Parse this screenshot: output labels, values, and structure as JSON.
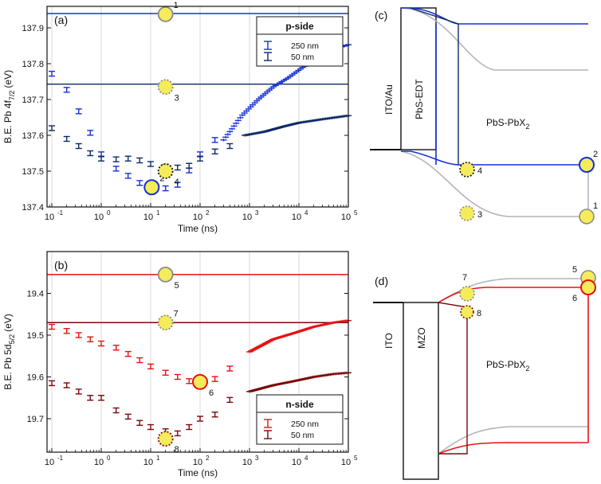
{
  "colors": {
    "blue_250": "#1530d8",
    "blue_50": "#0d2a66",
    "red_250": "#e81010",
    "red_50": "#7a0808",
    "marker_fill": "#f4ec5a",
    "marker_gray": "#8a8a8a",
    "band_gray": "#b4b4bc",
    "grid": "#d8d8d8"
  },
  "chart_data": [
    {
      "panel": "(a)",
      "type": "scatter",
      "x_scale": "log",
      "xlim": [
        0.08,
        100000
      ],
      "ylim": [
        137.96,
        137.4
      ],
      "y_inverted": true,
      "xlabel": "Time (ns)",
      "ylabel_main": "B.E. Pb 4f",
      "ylabel_sub": "7/2",
      "ylabel_unit": "(eV)",
      "x_ticks": [
        0.1,
        1,
        10,
        100,
        1000,
        10000,
        100000
      ],
      "x_tick_labels": [
        "10",
        "10",
        "10",
        "10",
        "10",
        "10",
        "10"
      ],
      "x_tick_exps": [
        "-1",
        "0",
        "1",
        "2",
        "3",
        "4",
        "5"
      ],
      "y_ticks": [
        137.4,
        137.5,
        137.6,
        137.7,
        137.8,
        137.9
      ],
      "y_tick_labels": [
        "137.4",
        "137.5",
        "137.6",
        "137.7",
        "137.8",
        "137.9"
      ],
      "legend": {
        "title": "p-side",
        "entries": [
          "250 nm",
          "50 nm"
        ]
      },
      "series": [
        {
          "name": "250 nm",
          "color_key": "blue_250",
          "x": [
            0.1,
            0.2,
            0.35,
            0.6,
            1,
            2,
            3.5,
            6,
            10,
            20,
            35,
            60,
            100,
            200
          ],
          "y": [
            137.772,
            137.727,
            137.667,
            137.607,
            137.547,
            137.507,
            137.487,
            137.467,
            137.457,
            137.452,
            137.462,
            137.502,
            137.547,
            137.587
          ],
          "err": 0.005,
          "tail_x": [
            300,
            700,
            1500,
            3000,
            6000,
            12000,
            25000,
            50000,
            100000
          ],
          "tail_y": [
            137.587,
            137.655,
            137.7,
            137.735,
            137.76,
            137.79,
            137.815,
            137.84,
            137.853
          ]
        },
        {
          "name": "50 nm",
          "color_key": "blue_50",
          "x": [
            0.1,
            0.2,
            0.35,
            0.6,
            1,
            2,
            3.5,
            6,
            10,
            20,
            35,
            60,
            100,
            200,
            400
          ],
          "y": [
            137.62,
            137.59,
            137.57,
            137.55,
            137.535,
            137.533,
            137.535,
            137.53,
            137.52,
            137.512,
            137.51,
            137.515,
            137.535,
            137.555,
            137.57
          ],
          "err": 0.005,
          "tail_x": [
            800,
            2000,
            5000,
            10000,
            30000,
            100000
          ],
          "tail_y": [
            137.6,
            137.61,
            137.625,
            137.635,
            137.645,
            137.655
          ]
        }
      ],
      "hlines": [
        {
          "y": 137.743,
          "color_key": "blue_50"
        },
        {
          "y": 137.94,
          "color_key": "blue_250"
        }
      ],
      "markers": [
        {
          "label": "2",
          "x": 10.5,
          "y": 137.455,
          "style": "blue-ring"
        },
        {
          "label": "4",
          "x": 20,
          "y": 137.5,
          "style": "dotted-black"
        },
        {
          "label": "3",
          "x": 20,
          "y": 137.735,
          "style": "dotted-gray"
        },
        {
          "label": "1",
          "x": 20,
          "y": 137.938,
          "style": "gray"
        }
      ]
    },
    {
      "panel": "(b)",
      "type": "scatter",
      "x_scale": "log",
      "xlim": [
        0.08,
        100000
      ],
      "ylim": [
        19.3,
        19.78
      ],
      "y_inverted": true,
      "xlabel": "Time (ns)",
      "ylabel_main": "B.E. Pb 5d",
      "ylabel_sub": "5/2",
      "ylabel_unit": "(eV)",
      "x_ticks": [
        0.1,
        1,
        10,
        100,
        1000,
        10000,
        100000
      ],
      "x_tick_labels": [
        "10",
        "10",
        "10",
        "10",
        "10",
        "10",
        "10"
      ],
      "x_tick_exps": [
        "-1",
        "0",
        "1",
        "2",
        "3",
        "4",
        "5"
      ],
      "y_ticks": [
        19.4,
        19.5,
        19.6,
        19.7
      ],
      "y_tick_labels": [
        "19.4",
        "19.5",
        "19.6",
        "19.7"
      ],
      "legend": {
        "title": "n-side",
        "entries": [
          "250 nm",
          "50 nm"
        ]
      },
      "series": [
        {
          "name": "250 nm",
          "color_key": "red_250",
          "x": [
            0.1,
            0.2,
            0.35,
            0.6,
            1,
            2,
            3.5,
            6,
            10,
            20,
            35,
            60,
            100,
            200,
            400
          ],
          "y": [
            19.48,
            19.49,
            19.5,
            19.51,
            19.52,
            19.53,
            19.545,
            19.56,
            19.575,
            19.59,
            19.6,
            19.61,
            19.615,
            19.605,
            19.58
          ],
          "err": 0.005,
          "tail_x": [
            1000,
            3000,
            8000,
            20000,
            50000,
            100000
          ],
          "tail_y": [
            19.54,
            19.51,
            19.495,
            19.48,
            19.47,
            19.465
          ]
        },
        {
          "name": "50 nm",
          "color_key": "red_50",
          "x": [
            0.1,
            0.2,
            0.35,
            0.6,
            1,
            2,
            3.5,
            6,
            10,
            20,
            35,
            60,
            100,
            200,
            400
          ],
          "y": [
            19.615,
            19.62,
            19.635,
            19.65,
            19.65,
            19.68,
            19.695,
            19.71,
            19.72,
            19.73,
            19.735,
            19.72,
            19.7,
            19.69,
            19.655
          ],
          "err": 0.005,
          "tail_x": [
            1000,
            3000,
            8000,
            20000,
            50000,
            100000
          ],
          "tail_y": [
            19.635,
            19.62,
            19.61,
            19.6,
            19.593,
            19.59
          ]
        }
      ],
      "hlines": [
        {
          "y": 19.355,
          "color_key": "red_250"
        },
        {
          "y": 19.47,
          "color_key": "red_50"
        }
      ],
      "markers": [
        {
          "label": "5",
          "x": 20,
          "y": 19.355,
          "style": "gray"
        },
        {
          "label": "7",
          "x": 20,
          "y": 19.47,
          "style": "dotted-gray"
        },
        {
          "label": "6",
          "x": 100,
          "y": 19.612,
          "style": "red-ring"
        },
        {
          "label": "8",
          "x": 20,
          "y": 19.748,
          "style": "dotted-red"
        }
      ]
    }
  ],
  "diagram_c": {
    "panel": "(c)",
    "contact": "ITO/Au",
    "layer1": "PbS-EDT",
    "layer2_main": "PbS-PbX",
    "layer2_sub": "2",
    "markers": [
      "4",
      "3",
      "2",
      "1"
    ]
  },
  "diagram_d": {
    "panel": "(d)",
    "contact": "ITO",
    "layer1": "MZO",
    "layer2_main": "PbS-PbX",
    "layer2_sub": "2",
    "markers": [
      "7",
      "8",
      "5",
      "6"
    ]
  }
}
